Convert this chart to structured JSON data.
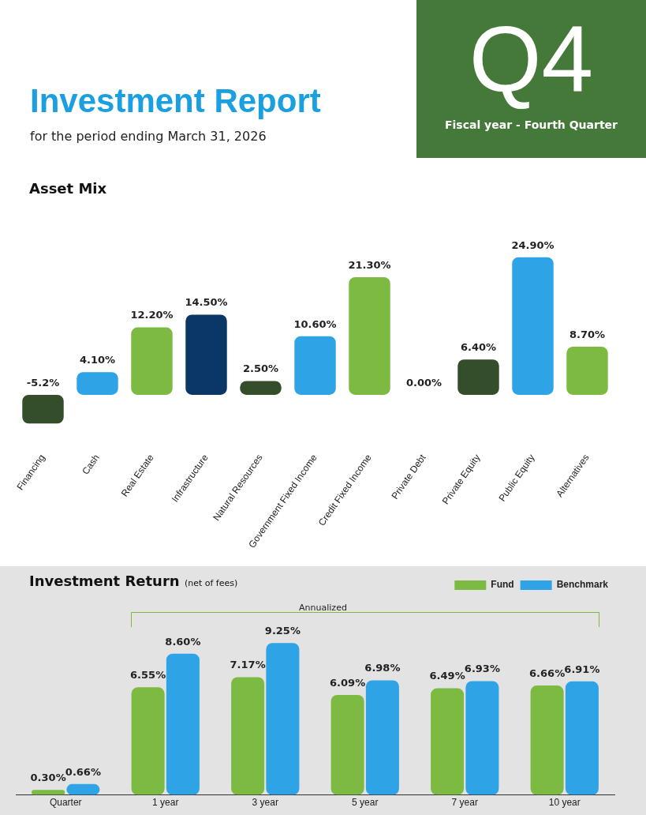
{
  "chart_data": [
    {
      "type": "other",
      "title": "Investment Report",
      "subtitle": "for the period ending March 31, 2026",
      "annotations": [
        "Q4",
        "Fiscal year - Fourth Quarter"
      ]
    },
    {
      "type": "bar",
      "title": "Asset Mix",
      "categories": [
        "Financing",
        "Cash",
        "Real Estate",
        "Infrastructure",
        "Natural Resources",
        "Government Fixed Income",
        "Credit Fixed Income",
        "Private Debt",
        "Private Equity",
        "Public Equity",
        "Alternatives"
      ],
      "values": [
        -5.2,
        4.1,
        12.2,
        14.5,
        2.5,
        10.6,
        21.3,
        0,
        6.4,
        24.9,
        8.7
      ],
      "value_labels": [
        "-5.2%",
        "4.10%",
        "12.20%",
        "14.50%",
        "2.50%",
        "10.60%",
        "21.30%",
        "0.00%",
        "6.40%",
        "24.90%",
        "8.70%"
      ],
      "colors": [
        "#344d2b",
        "#2ea3e6",
        "#7dba42",
        "#0a3766",
        "#344d2b",
        "#2ea3e6",
        "#7dba42",
        "#344d2b",
        "#344d2b",
        "#2ea3e6",
        "#7dba42"
      ],
      "tick_labels": "x",
      "grid": false,
      "legend": false
    },
    {
      "type": "bar",
      "title": "Investment Return",
      "subtitle": "(net of fees)",
      "categories": [
        "Quarter",
        "1 year",
        "3 year",
        "5 year",
        "7 year",
        "10 year"
      ],
      "series": [
        {
          "name": "Fund",
          "color": "#7dba42",
          "values": [
            0.3,
            6.55,
            7.17,
            6.09,
            6.49,
            6.66
          ],
          "value_labels": [
            "0.30%",
            "6.55%",
            "7.17%",
            "6.09%",
            "6.49%",
            "6.66%"
          ]
        },
        {
          "name": "Benchmark",
          "color": "#2ea3e6",
          "values": [
            0.66,
            8.6,
            9.25,
            6.98,
            6.93,
            6.91
          ],
          "value_labels": [
            "0.66%",
            "8.60%",
            "9.25%",
            "6.98%",
            "6.93%",
            "6.91%"
          ]
        }
      ],
      "annotations": [
        "Annualized"
      ],
      "tick_labels": "x",
      "grid": false,
      "legend": "top right"
    }
  ]
}
